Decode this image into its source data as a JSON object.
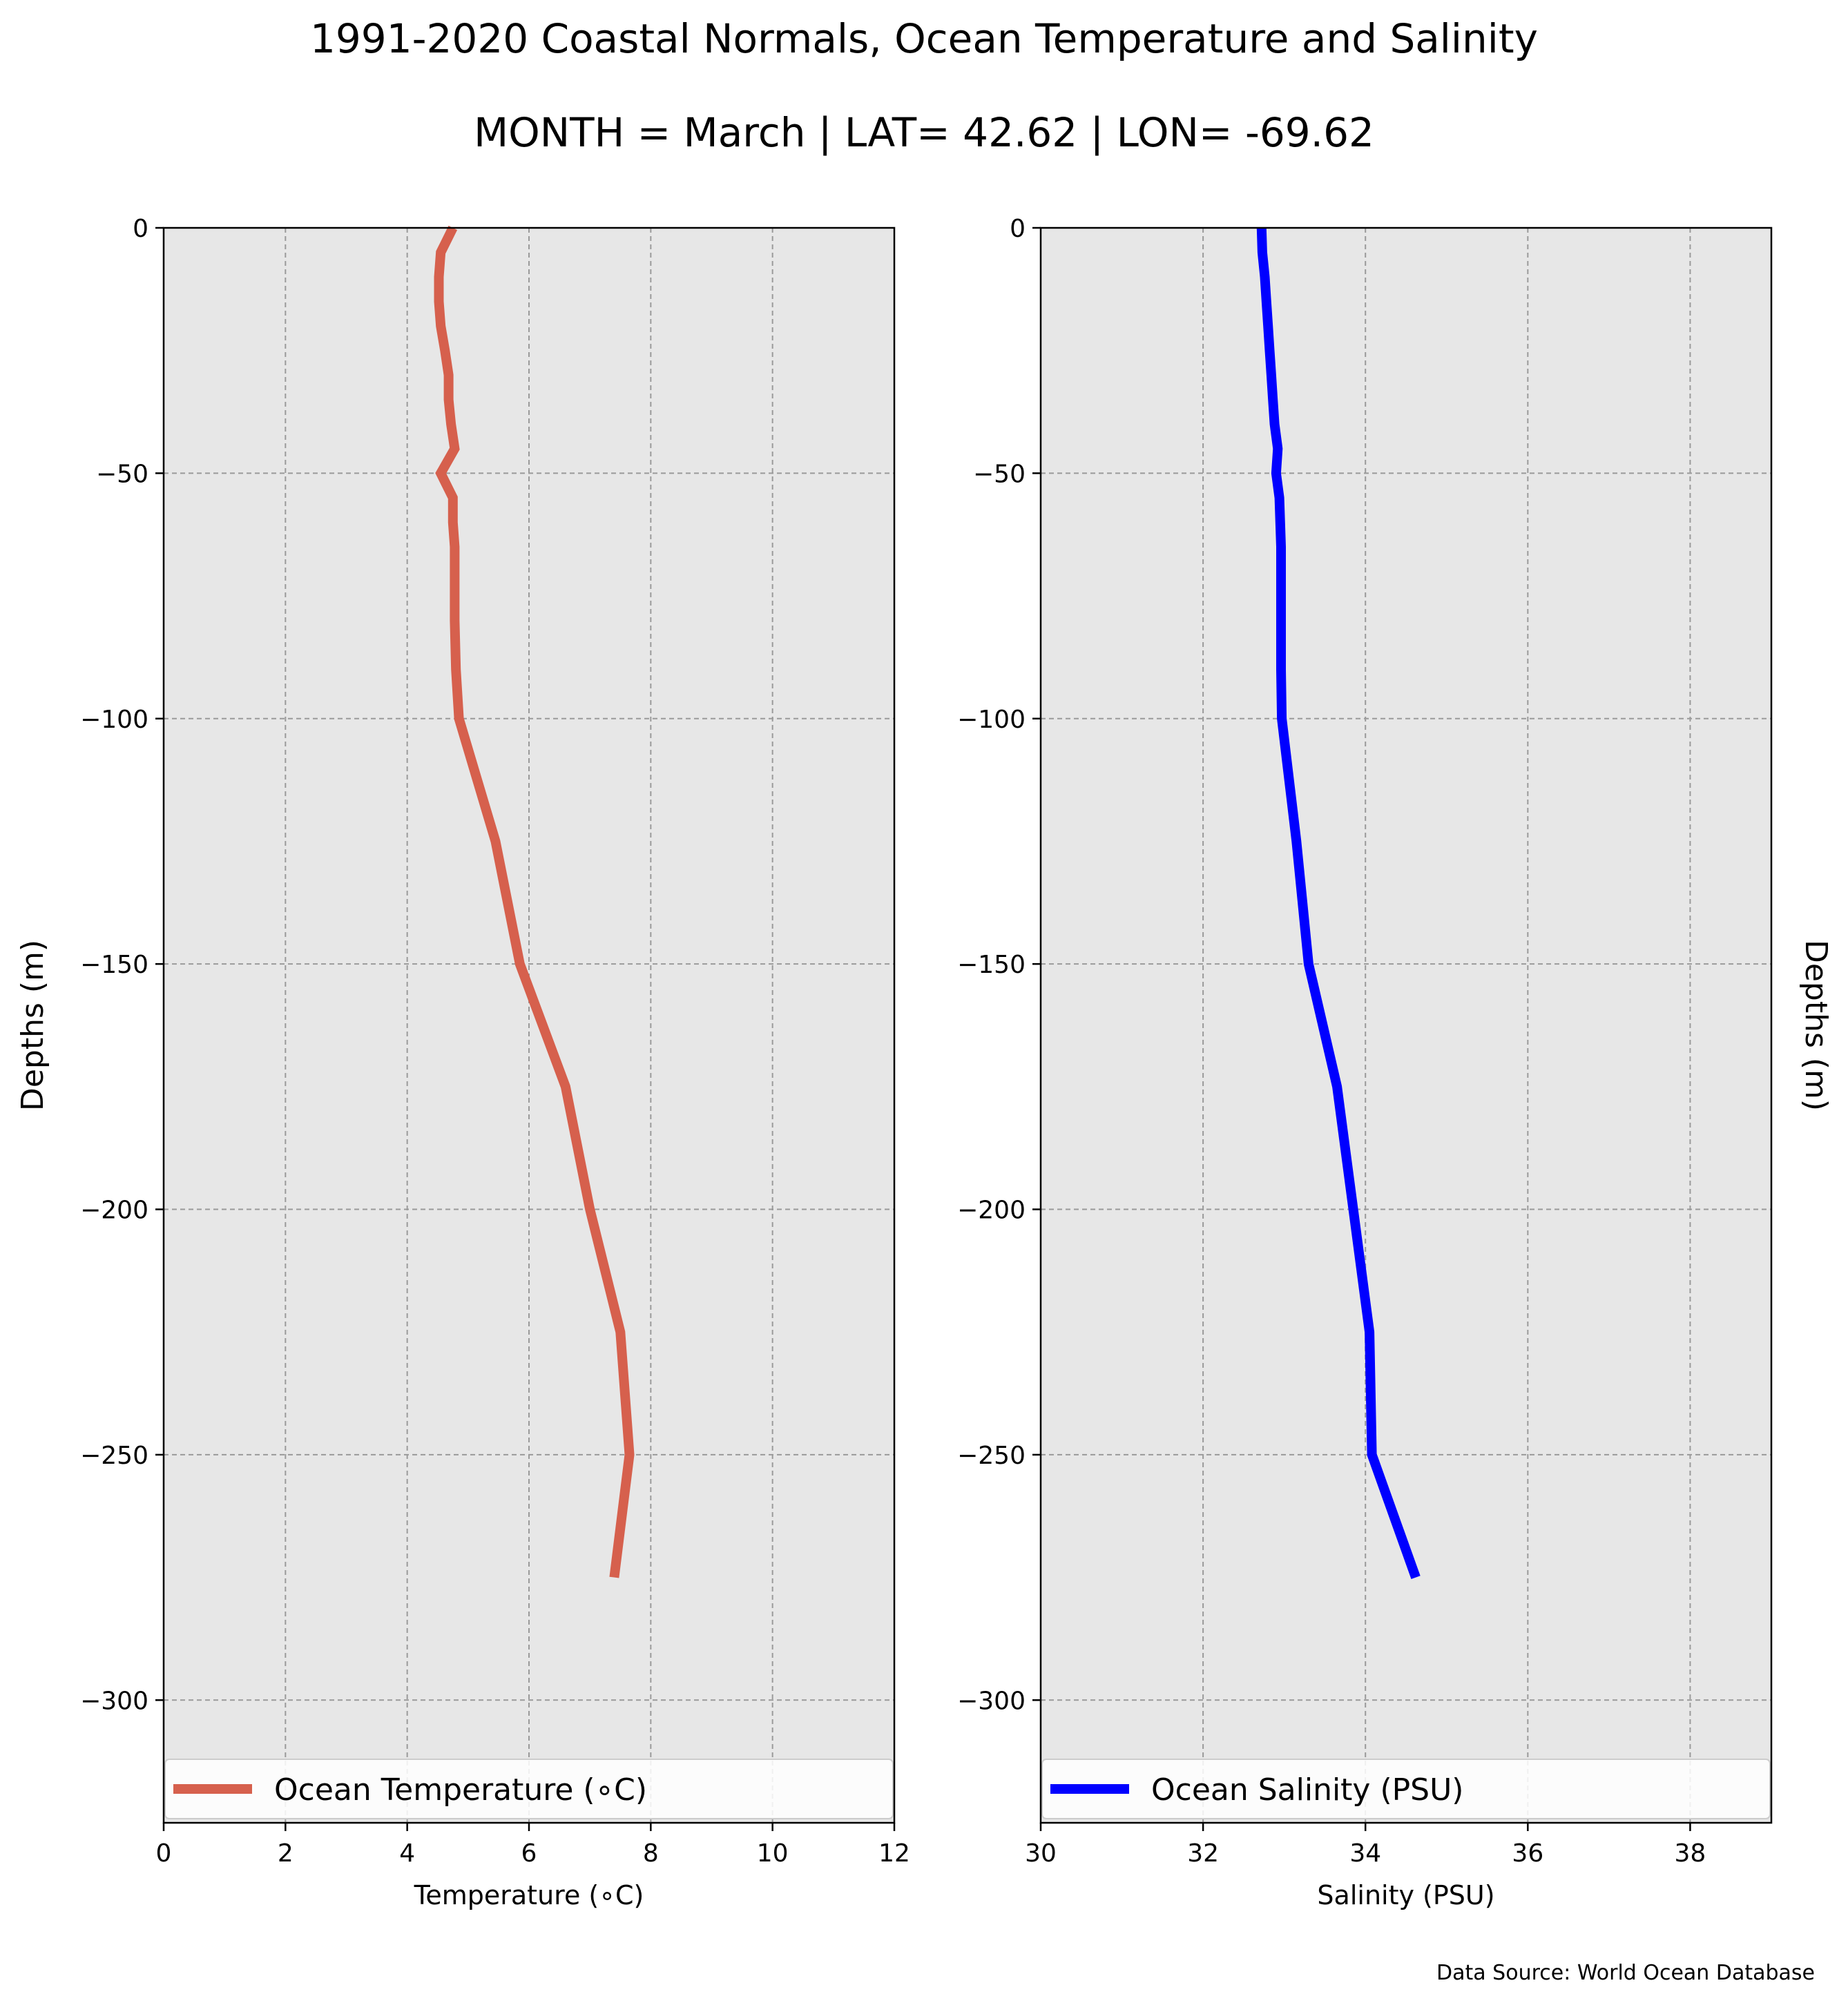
{
  "header": {
    "title": "1991-2020 Coastal Normals, Ocean Temperature and Salinity",
    "subtitle": "MONTH = March | LAT= 42.62 | LON= -69.62"
  },
  "footer": {
    "source": "Data Source: World Ocean Database"
  },
  "chart_data": [
    {
      "type": "line",
      "xlabel": "Temperature (∘C)",
      "ylabel": "Depths (m)",
      "xlim": [
        0,
        12
      ],
      "ylim": [
        -325,
        0
      ],
      "xticks": [
        0,
        2,
        4,
        6,
        8,
        10,
        12
      ],
      "yticks": [
        0,
        -50,
        -100,
        -150,
        -200,
        -250,
        -300
      ],
      "grid": true,
      "legend": "bottom",
      "series": [
        {
          "name": "Ocean Temperature (∘C)",
          "color": "#d6604d",
          "x": [
            4.75,
            4.55,
            4.52,
            4.52,
            4.55,
            4.62,
            4.68,
            4.68,
            4.72,
            4.78,
            4.55,
            4.75,
            4.75,
            4.78,
            4.78,
            4.78,
            4.78,
            4.8,
            4.85,
            5.45,
            5.85,
            6.6,
            7.0,
            7.5,
            7.65,
            7.4
          ],
          "y": [
            0,
            -5,
            -10,
            -15,
            -20,
            -25,
            -30,
            -35,
            -40,
            -45,
            -50,
            -55,
            -60,
            -65,
            -70,
            -75,
            -80,
            -90,
            -100,
            -125,
            -150,
            -175,
            -200,
            -225,
            -250,
            -275
          ]
        }
      ]
    },
    {
      "type": "line",
      "xlabel": "Salinity (PSU)",
      "ylabel": "Depths (m)",
      "xlim": [
        30,
        39
      ],
      "ylim": [
        -325,
        0
      ],
      "xticks": [
        30,
        32,
        34,
        36,
        38
      ],
      "yticks": [
        0,
        -50,
        -100,
        -150,
        -200,
        -250,
        -300
      ],
      "grid": true,
      "legend": "bottom",
      "series": [
        {
          "name": "Ocean Salinity (PSU)",
          "color": "#0000ff",
          "x": [
            32.72,
            32.73,
            32.76,
            32.78,
            32.8,
            32.82,
            32.84,
            32.86,
            32.88,
            32.92,
            32.9,
            32.94,
            32.95,
            32.96,
            32.96,
            32.96,
            32.96,
            32.96,
            32.97,
            33.15,
            33.3,
            33.65,
            33.85,
            34.05,
            34.08,
            34.62
          ],
          "y": [
            0,
            -5,
            -10,
            -15,
            -20,
            -25,
            -30,
            -35,
            -40,
            -45,
            -50,
            -55,
            -60,
            -65,
            -70,
            -75,
            -80,
            -90,
            -100,
            -125,
            -150,
            -175,
            -200,
            -225,
            -250,
            -275
          ]
        }
      ]
    }
  ]
}
